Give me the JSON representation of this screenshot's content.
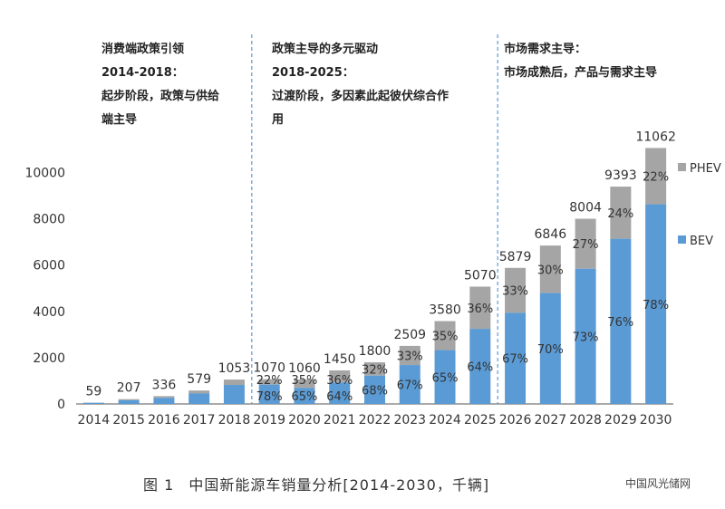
{
  "chart_data": {
    "type": "bar",
    "stacked": true,
    "categories": [
      "2014",
      "2015",
      "2016",
      "2017",
      "2018",
      "2019",
      "2020",
      "2021",
      "2022",
      "2023",
      "2024",
      "2025",
      "2026",
      "2027",
      "2028",
      "2029",
      "2030"
    ],
    "totals": [
      59,
      207,
      336,
      579,
      1053,
      1070,
      1060,
      1450,
      1800,
      2509,
      3580,
      5070,
      5879,
      6846,
      8004,
      9393,
      11062
    ],
    "total_labels": [
      "59",
      "207",
      "336",
      "579",
      "1053",
      "1070",
      "1060",
      "1450",
      "1800",
      "2509",
      "3580",
      "5070",
      "5879",
      "6846",
      "8004",
      "9393",
      "11062"
    ],
    "bev_share": [
      0.78,
      0.78,
      0.78,
      0.78,
      0.78,
      0.78,
      0.65,
      0.64,
      0.68,
      0.67,
      0.65,
      0.64,
      0.67,
      0.7,
      0.73,
      0.76,
      0.78
    ],
    "series": [
      {
        "name": "BEV",
        "color": "#5b9bd5",
        "pct_labels": [
          "",
          "",
          "",
          "",
          "",
          "78%",
          "65%",
          "64%",
          "68%",
          "67%",
          "65%",
          "64%",
          "67%",
          "70%",
          "73%",
          "76%",
          "78%"
        ]
      },
      {
        "name": "PHEV",
        "color": "#a5a5a5",
        "pct_labels": [
          "",
          "",
          "",
          "",
          "",
          "22%",
          "35%",
          "36%",
          "32%",
          "33%",
          "35%",
          "36%",
          "33%",
          "30%",
          "27%",
          "24%",
          "22%"
        ]
      }
    ],
    "yticks": [
      "0",
      "2000",
      "4000",
      "6000",
      "8000",
      "10000"
    ],
    "ylim": [
      0,
      11000
    ],
    "phase_dividers_after": [
      "2018",
      "2025"
    ]
  },
  "phases": [
    {
      "text": "消费端政策引领\n2014-2018：\n起步阶段，政策与供给\n端主导"
    },
    {
      "text": "政策主导的多元驱动\n2018-2025：\n过渡阶段，多因素此起彼伏综合作\n用"
    },
    {
      "text": "市场需求主导：\n市场成熟后，产品与需求主导"
    }
  ],
  "legend": [
    {
      "label": "PHEV",
      "color": "#a5a5a5"
    },
    {
      "label": "BEV",
      "color": "#5b9bd5"
    }
  ],
  "caption": {
    "fig": "图 1",
    "text": "中国新能源车销量分析[2014-2030，千辆]"
  },
  "watermark": "中国风光储网"
}
